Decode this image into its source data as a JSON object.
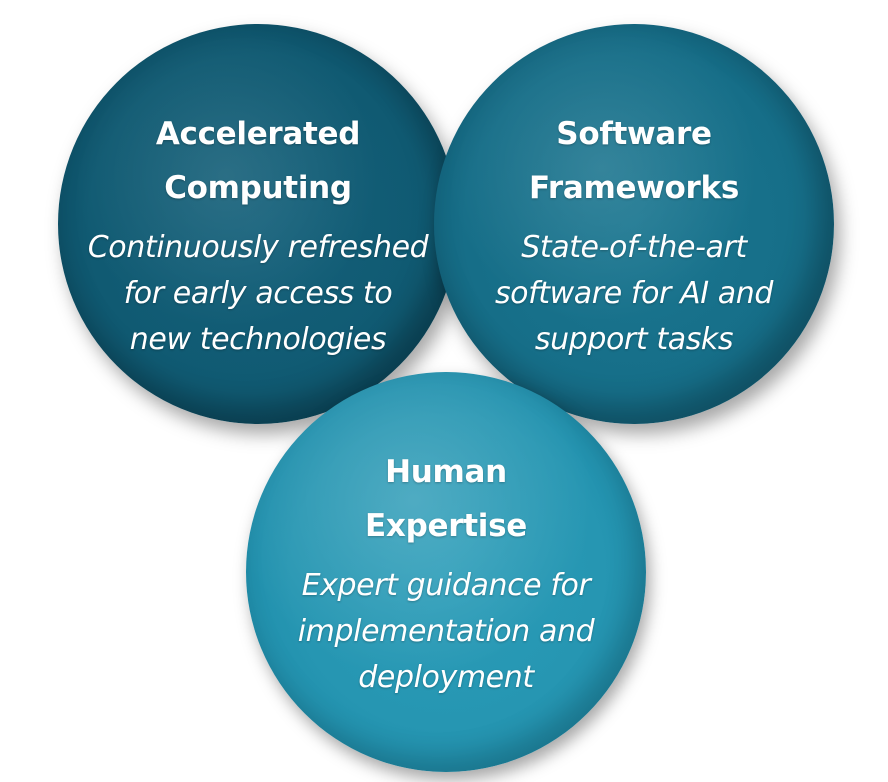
{
  "circles": {
    "accelerated": {
      "title": [
        "Accelerated",
        "Computing"
      ],
      "description": [
        "Continuously refreshed",
        "for early access to",
        "new technologies"
      ]
    },
    "software": {
      "title": [
        "Software",
        "Frameworks"
      ],
      "description": [
        "State-of-the-art",
        "software for AI and",
        "support tasks"
      ]
    },
    "human": {
      "title": [
        "Human",
        "Expertise"
      ],
      "description": [
        "Expert guidance for",
        "implementation and",
        "deployment"
      ]
    }
  },
  "colors": {
    "accelerated": "#105a72",
    "software": "#166e88",
    "human": "#2696b2",
    "text": "#ffffff"
  }
}
